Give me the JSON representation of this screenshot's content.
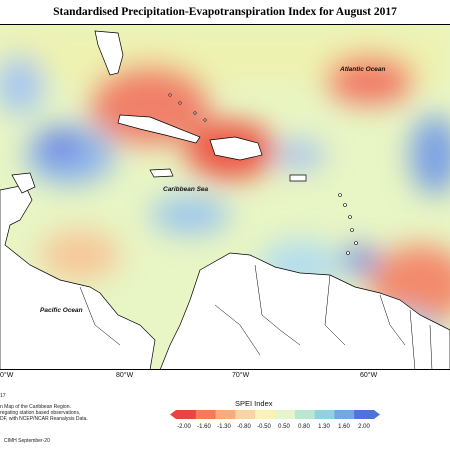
{
  "title": "Standardised Precipitation-Evapotranspiration Index for August 2017",
  "map": {
    "labels": {
      "atlantic": "Atlantic Ocean",
      "caribbean": "Caribbean Sea",
      "pacific": "Pacific Ocean"
    }
  },
  "longitudes": [
    "0°W",
    "80°W",
    "70°W",
    "60°W"
  ],
  "notes": {
    "n1": "17",
    "n2": "n Map of the Caribbean Region.",
    "n3": "regating station based observations,",
    "n4": "DF, with NCEP/NCAR Reanalysis Data.",
    "credit": "CIMH September-20"
  },
  "legend": {
    "title": "SPEI Index",
    "ticks": [
      "-2.00",
      "-1.60",
      "-1.30",
      "-0.80",
      "-0.50",
      "0.50",
      "0.80",
      "1.30",
      "1.60",
      "2.00"
    ],
    "colors": [
      "#e8463c",
      "#f47c55",
      "#f9ab7a",
      "#fbd5a0",
      "#fbf3b4",
      "#e6f6cc",
      "#b8e8cf",
      "#8fd3e3",
      "#6fa8e6",
      "#4f73d8"
    ]
  }
}
